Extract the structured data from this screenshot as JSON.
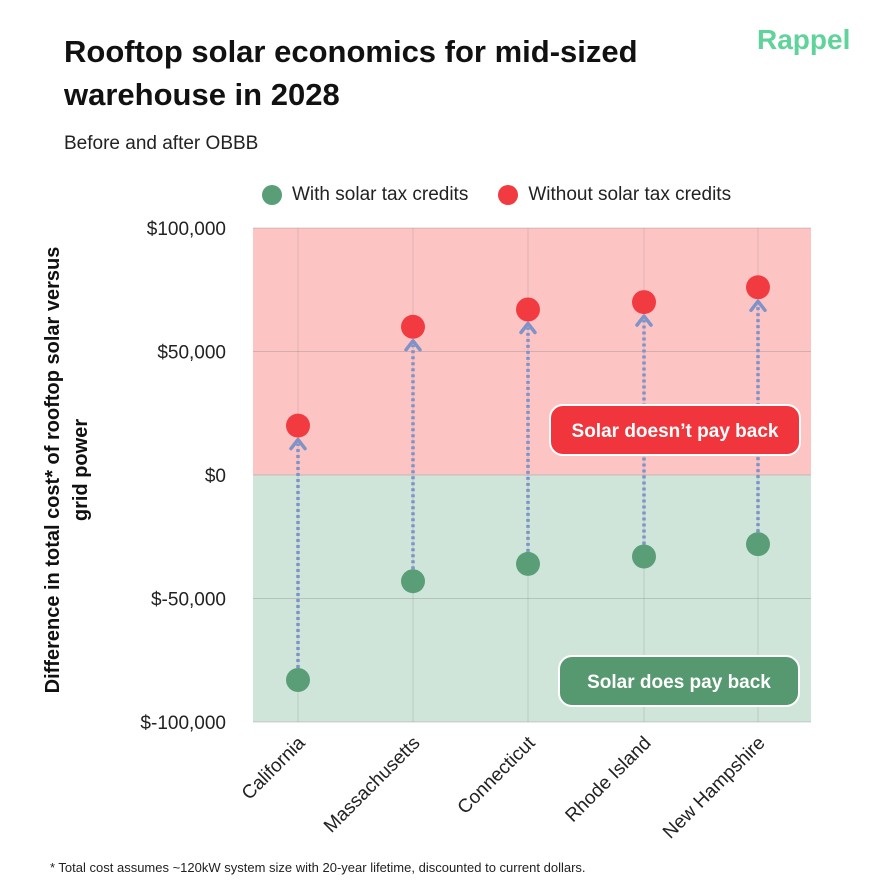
{
  "header": {
    "title": "Rooftop solar economics for mid-sized warehouse in 2028",
    "subtitle": "Before and after OBBB",
    "brand": "Rappel"
  },
  "footnote": "* Total cost assumes ~120kW system size with 20-year lifetime, discounted to current dollars.",
  "chart_data": {
    "type": "scatter",
    "title": "Rooftop solar economics for mid-sized warehouse in 2028",
    "subtitle": "Before and after OBBB",
    "ylabel": "Difference in total cost* of rooftop solar versus grid power",
    "xlabel": "",
    "categories": [
      "California",
      "Massachusetts",
      "Connecticut",
      "Rhode Island",
      "New Hampshire"
    ],
    "ylim": [
      -100000,
      100000
    ],
    "yticks": [
      100000,
      50000,
      0,
      -50000,
      -100000
    ],
    "ytick_labels": [
      "$100,000",
      "$50,000",
      "$0",
      "$-50,000",
      "$-100,000"
    ],
    "series": [
      {
        "name": "With solar tax credits",
        "color": "#5a9e78",
        "values": [
          -83000,
          -43000,
          -36000,
          -33000,
          -28000
        ]
      },
      {
        "name": "Without solar tax credits",
        "color": "#f23b41",
        "values": [
          20000,
          60000,
          67000,
          70000,
          76000
        ]
      }
    ],
    "regions": [
      {
        "label": "Solar doesn’t pay back",
        "range": [
          0,
          100000
        ],
        "fill": "#fdc4c4",
        "pill_color": "#f0363c"
      },
      {
        "label": "Solar does pay back",
        "range": [
          -100000,
          0
        ],
        "fill": "#cfe5d9",
        "pill_color": "#56986f"
      }
    ],
    "arrow_color": "#7f93c9",
    "legend_position": "top"
  }
}
